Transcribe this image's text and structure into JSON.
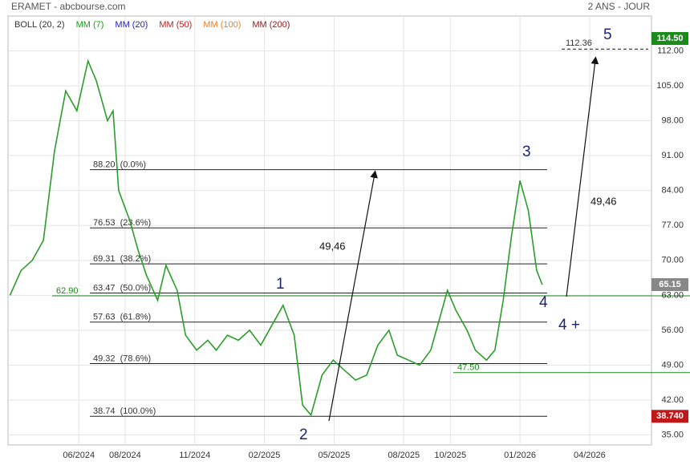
{
  "header": {
    "title": "ERAMET - abcbourse.com",
    "period": "2 ANS - JOUR"
  },
  "chart_data": {
    "type": "line",
    "legend": [
      {
        "label": "BOLL (20, 2)",
        "color": "#333333"
      },
      {
        "label": "MM (7)",
        "color": "#1a9a1a"
      },
      {
        "label": "MM (20)",
        "color": "#2020c0"
      },
      {
        "label": "MM (50)",
        "color": "#c02020"
      },
      {
        "label": "MM (100)",
        "color": "#f08020"
      },
      {
        "label": "MM (200)",
        "color": "#8b1a1a"
      }
    ],
    "color": "#2a9d2a",
    "x": [
      2024.17,
      2024.21,
      2024.25,
      2024.29,
      2024.33,
      2024.37,
      2024.41,
      2024.45,
      2024.48,
      2024.52,
      2024.54,
      2024.56,
      2024.6,
      2024.63,
      2024.66,
      2024.7,
      2024.73,
      2024.77,
      2024.8,
      2024.84,
      2024.88,
      2024.91,
      2024.95,
      2024.99,
      2025.03,
      2025.07,
      2025.11,
      2025.15,
      2025.19,
      2025.22,
      2025.25,
      2025.29,
      2025.33,
      2025.37,
      2025.41,
      2025.45,
      2025.49,
      2025.53,
      2025.56,
      2025.6,
      2025.64,
      2025.68,
      2025.71,
      2025.74,
      2025.77,
      2025.81,
      2025.84,
      2025.88,
      2025.91,
      2025.94,
      2025.97,
      2026.0,
      2026.03,
      2026.06,
      2026.08
    ],
    "values": [
      63,
      68,
      70,
      74,
      92,
      104,
      100,
      110,
      106,
      98,
      100,
      84,
      78,
      72,
      67,
      62,
      69,
      64,
      55,
      52,
      54,
      52,
      55,
      54,
      56,
      53,
      57,
      61,
      55,
      41,
      39,
      47,
      50,
      48,
      46,
      47,
      53,
      56,
      51,
      50,
      49,
      52,
      58,
      64,
      60,
      56,
      52,
      50,
      52,
      62,
      75,
      86,
      80,
      68,
      65.15
    ],
    "xlim": [
      2024.163,
      2026.472
    ],
    "xticks": [
      {
        "value": 2024.417,
        "label": "06/2024"
      },
      {
        "value": 2024.583,
        "label": "08/2024"
      },
      {
        "value": 2024.833,
        "label": "11/2024"
      },
      {
        "value": 2025.083,
        "label": "02/2025"
      },
      {
        "value": 2025.333,
        "label": "05/2025"
      },
      {
        "value": 2025.583,
        "label": "08/2025"
      },
      {
        "value": 2025.75,
        "label": "10/2025"
      },
      {
        "value": 2026.0,
        "label": "01/2026"
      },
      {
        "value": 2026.25,
        "label": "04/2026"
      }
    ],
    "ylim": [
      33,
      119
    ],
    "yticks": [
      {
        "value": 35,
        "label": "35.00"
      },
      {
        "value": 42,
        "label": "42.00"
      },
      {
        "value": 49,
        "label": "49.00"
      },
      {
        "value": 56,
        "label": "56.00"
      },
      {
        "value": 63,
        "label": "63.00"
      },
      {
        "value": 70,
        "label": "70.00"
      },
      {
        "value": 77,
        "label": "77.00"
      },
      {
        "value": 84,
        "label": "84.00"
      },
      {
        "value": 91,
        "label": "91.00"
      },
      {
        "value": 98,
        "label": "98.00"
      },
      {
        "value": 105,
        "label": "105.00"
      },
      {
        "value": 112,
        "label": "112.00"
      }
    ],
    "grid": true,
    "fibonacci": [
      {
        "value": 88.2,
        "label": "88.20  (0.0%)"
      },
      {
        "value": 76.53,
        "label": "76.53  (23.6%)"
      },
      {
        "value": 69.31,
        "label": "69.31  (38.2%)"
      },
      {
        "value": 63.47,
        "label": "63.47  (50.0%)"
      },
      {
        "value": 57.63,
        "label": "57.63  (61.8%)"
      },
      {
        "value": 49.32,
        "label": "49.32  (78.6%)"
      },
      {
        "value": 38.74,
        "label": "38.74  (100.0%)"
      }
    ],
    "support": [
      {
        "value": 62.9,
        "label": "62.90",
        "color": "#1a8a1a"
      },
      {
        "value": 47.5,
        "label": "47.50",
        "color": "#1a8a1a"
      }
    ],
    "target": 112.36,
    "price_tags": [
      {
        "value": 114.5,
        "label": "114.50",
        "color": "#1a8a1a"
      },
      {
        "value": 65.15,
        "color": "#888888"
      },
      {
        "value": 38.74,
        "label": "38.740",
        "color": "#c01818"
      }
    ],
    "annotations": {
      "wave_1": "1",
      "wave_2": "2",
      "wave_3": "3",
      "wave_4": "4",
      "wave_4b": "4 +",
      "wave_5": "5",
      "gain_1": "49,46",
      "gain_2": "49,46"
    }
  }
}
